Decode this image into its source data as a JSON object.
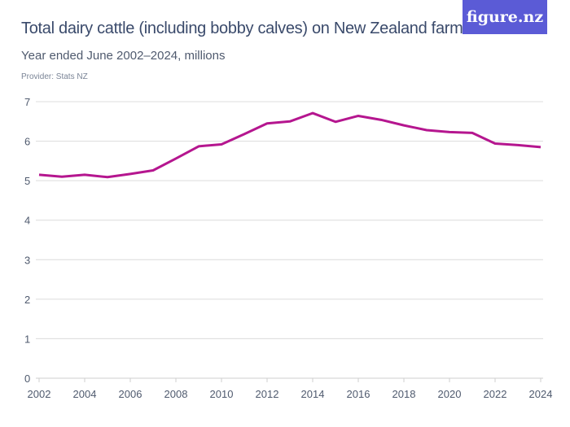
{
  "title": "Total dairy cattle (including bobby calves) on New Zealand farms",
  "subtitle": "Year ended June 2002–2024, millions",
  "provider": "Provider: Stats NZ",
  "logo": "figure.nz",
  "colors": {
    "line": "#b5168f",
    "grid": "#dcdcdc",
    "logo_bg": "#5b5bd6"
  },
  "chart_data": {
    "type": "line",
    "x": [
      2002,
      2003,
      2004,
      2005,
      2006,
      2007,
      2008,
      2009,
      2010,
      2011,
      2012,
      2013,
      2014,
      2015,
      2016,
      2017,
      2018,
      2019,
      2020,
      2021,
      2022,
      2023,
      2024
    ],
    "series": [
      {
        "values": [
          5.15,
          5.1,
          5.15,
          5.09,
          5.17,
          5.26,
          5.56,
          5.87,
          5.92,
          6.18,
          6.45,
          6.5,
          6.71,
          6.49,
          6.64,
          6.54,
          6.4,
          6.28,
          6.23,
          6.21,
          5.94,
          5.9,
          5.85
        ]
      }
    ],
    "xticks": [
      "2002",
      "2004",
      "2006",
      "2008",
      "2010",
      "2012",
      "2014",
      "2016",
      "2018",
      "2020",
      "2022",
      "2024"
    ],
    "yticks": [
      "0",
      "1",
      "2",
      "3",
      "4",
      "5",
      "6",
      "7"
    ],
    "xlim": [
      2002,
      2024
    ],
    "ylim": [
      0,
      7
    ],
    "grid": true
  }
}
